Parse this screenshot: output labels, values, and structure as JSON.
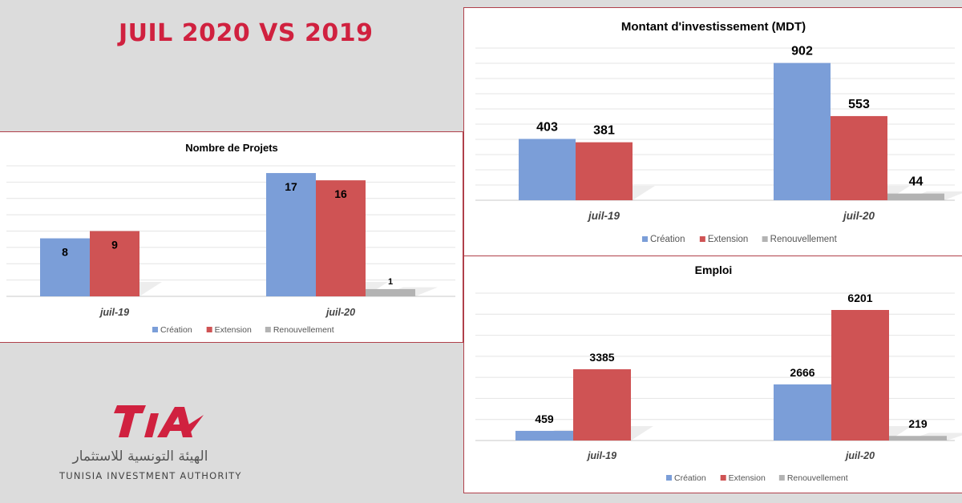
{
  "headline": "JUIL 2020 VS 2019",
  "logo": {
    "arabic": "الهيئة التونسية للاستثمار",
    "english": "TUNISIA INVESTMENT AUTHORITY"
  },
  "colors": {
    "creation": "#7b9ed8",
    "extension": "#cf5354",
    "renouvellement": "#b3b3b3",
    "brand": "#d0213f"
  },
  "chart_data": [
    {
      "id": "projets",
      "type": "bar",
      "title": "Nombre de Projets",
      "categories": [
        "juil-19",
        "juil-20"
      ],
      "series": [
        {
          "name": "Création",
          "values": [
            8,
            17
          ]
        },
        {
          "name": "Extension",
          "values": [
            9,
            16
          ]
        },
        {
          "name": "Renouvellement",
          "values": [
            0,
            1
          ]
        }
      ],
      "data_labels": [
        [
          "8",
          "17"
        ],
        [
          "9",
          "16"
        ],
        [
          "",
          "1"
        ]
      ],
      "ylim": [
        0,
        18
      ],
      "grid": true,
      "legend": "bottom"
    },
    {
      "id": "invest",
      "type": "bar",
      "title": "Montant d'investissement (MDT)",
      "categories": [
        "juil-19",
        "juil-20"
      ],
      "series": [
        {
          "name": "Création",
          "values": [
            403,
            902
          ]
        },
        {
          "name": "Extension",
          "values": [
            381,
            553
          ]
        },
        {
          "name": "Renouvellement",
          "values": [
            0,
            44
          ]
        }
      ],
      "data_labels": [
        [
          "403",
          "902"
        ],
        [
          "381",
          "553"
        ],
        [
          "",
          "44"
        ]
      ],
      "ylim": [
        0,
        1000
      ],
      "grid": true,
      "legend": "bottom"
    },
    {
      "id": "emploi",
      "type": "bar",
      "title": "Emploi",
      "categories": [
        "juil-19",
        "juil-20"
      ],
      "series": [
        {
          "name": "Création",
          "values": [
            459,
            2666
          ]
        },
        {
          "name": "Extension",
          "values": [
            3385,
            6201
          ]
        },
        {
          "name": "Renouvellement",
          "values": [
            0,
            219
          ]
        }
      ],
      "data_labels": [
        [
          "459",
          "2666"
        ],
        [
          "3385",
          "6201"
        ],
        [
          "",
          "219"
        ]
      ],
      "ylim": [
        0,
        7000
      ],
      "grid": true,
      "legend": "bottom"
    }
  ]
}
